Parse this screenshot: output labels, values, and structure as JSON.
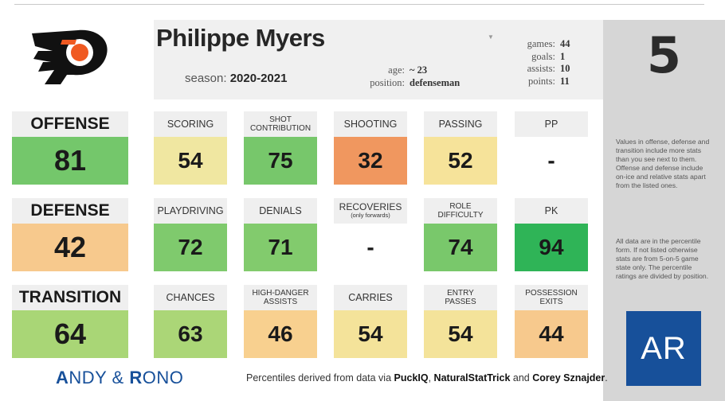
{
  "player": {
    "name": "Philippe Myers",
    "season_label": "season:",
    "season": "2020-2021",
    "age_label": "age:",
    "age": "~ 23",
    "position_label": "position:",
    "position": "defenseman",
    "dropdown_icon": "chevron-down-icon",
    "stats": [
      {
        "label": "games:",
        "value": "44"
      },
      {
        "label": "goals:",
        "value": "1"
      },
      {
        "label": "assists:",
        "value": "10"
      },
      {
        "label": "points:",
        "value": "11"
      }
    ],
    "jersey_number": "5"
  },
  "team_logo": "philadelphia-flyers-logo",
  "colors": {
    "green_dark": "#2fb457",
    "green": "#74c76b",
    "light_green": "#c8e08a",
    "yellow": "#f6e39a",
    "peach": "#f7c98d",
    "orange": "#f0975f",
    "brand_blue": "#17509a"
  },
  "sections": [
    {
      "name": "OFFENSE",
      "value": "81",
      "color": "#74c76b",
      "tiles": [
        {
          "label": [
            "SCORING"
          ],
          "value": "54",
          "color": "#f0e7a1"
        },
        {
          "label": [
            "SHOT",
            "CONTRIBUTION"
          ],
          "value": "75",
          "color": "#77c76b"
        },
        {
          "label": [
            "SHOOTING"
          ],
          "value": "32",
          "color": "#f0975f"
        },
        {
          "label": [
            "PASSING"
          ],
          "value": "52",
          "color": "#f6e39a"
        },
        {
          "label": [
            "PP"
          ],
          "value": "-",
          "color": "#ffffff"
        }
      ]
    },
    {
      "name": "DEFENSE",
      "value": "42",
      "color": "#f7c98d",
      "tiles": [
        {
          "label": [
            "PLAYDRIVING"
          ],
          "value": "72",
          "color": "#7fca6d"
        },
        {
          "label": [
            "DENIALS"
          ],
          "value": "71",
          "color": "#82cb6d"
        },
        {
          "label": [
            "RECOVERIES"
          ],
          "sublabel": "(only forwards)",
          "value": "-",
          "color": "#ffffff"
        },
        {
          "label": [
            "ROLE",
            "DIFFICULTY"
          ],
          "value": "74",
          "color": "#79c86b"
        },
        {
          "label": [
            "PK"
          ],
          "value": "94",
          "color": "#2fb457"
        }
      ]
    },
    {
      "name": "TRANSITION",
      "value": "64",
      "color": "#a9d676",
      "tiles": [
        {
          "label": [
            "CHANCES"
          ],
          "value": "63",
          "color": "#abd677"
        },
        {
          "label": [
            "HIGH-DANGER",
            "ASSISTS"
          ],
          "value": "46",
          "color": "#f8d08f"
        },
        {
          "label": [
            "CARRIES"
          ],
          "value": "54",
          "color": "#f4e39a"
        },
        {
          "label": [
            "ENTRY",
            "PASSES"
          ],
          "value": "54",
          "color": "#f4e39a"
        },
        {
          "label": [
            "POSSESSION",
            "EXITS"
          ],
          "value": "44",
          "color": "#f7c98d"
        }
      ]
    }
  ],
  "notes": [
    "Values in offense, defense and transition include more stats than you see next to them. Offense and defense include on-ice and relative stats apart from the listed ones.",
    "All data are in the percentile form. If not listed otherwise stats are from 5-on-5 game state only. The percentile ratings are divided by position."
  ],
  "badge": "AR",
  "footer": {
    "brand_parts": [
      "A",
      "NDY & ",
      "R",
      "ONO"
    ],
    "credit_prefix": "Percentiles derived from data via ",
    "source1": "PuckIQ",
    "sep": ", ",
    "source2": "NaturalStatTrick",
    "and": " and ",
    "source3": "Corey Sznajder",
    "end": "."
  }
}
